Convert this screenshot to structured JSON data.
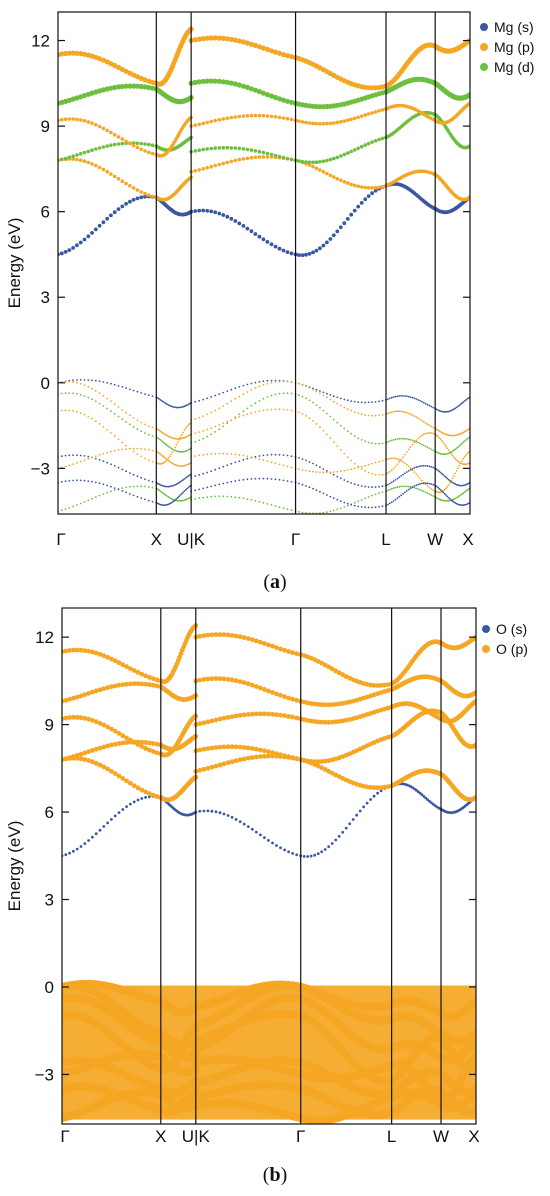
{
  "chart_data": [
    {
      "type": "scatter",
      "panel": "a",
      "caption_open": "(",
      "caption_letter": "a",
      "caption_close": ")",
      "title": "",
      "xlabel": "",
      "ylabel": "Energy (eV)",
      "ylim": [
        -4.6,
        13.0
      ],
      "yticks": [
        -3,
        0,
        3,
        6,
        9,
        12
      ],
      "ytick_labels": [
        "−3",
        "0",
        "3",
        "6",
        "9",
        "12"
      ],
      "kpath_labels": [
        "Γ",
        "X",
        "U|K",
        "Γ",
        "L",
        "W",
        "X"
      ],
      "kpath_positions": [
        0,
        1.0,
        1.354,
        2.416,
        3.336,
        3.836,
        4.19
      ],
      "legend_position": "top-right",
      "grid": false,
      "series": [
        {
          "name": "Mg (s)",
          "color": "#3b56a3"
        },
        {
          "name": "Mg (p)",
          "color": "#f5a623"
        },
        {
          "name": "Mg (d)",
          "color": "#6dbf3e"
        }
      ],
      "key_points": {
        "conduction_band_minimum_gamma": 4.5,
        "valence_band_maximum": 0.0,
        "valence_band_bottom": -4.5
      }
    },
    {
      "type": "scatter",
      "panel": "b",
      "caption_open": "(",
      "caption_letter": "b",
      "caption_close": ")",
      "title": "",
      "xlabel": "",
      "ylabel": "Energy (eV)",
      "ylim": [
        -4.7,
        13.0
      ],
      "yticks": [
        -3,
        0,
        3,
        6,
        9,
        12
      ],
      "ytick_labels": [
        "−3",
        "0",
        "3",
        "6",
        "9",
        "12"
      ],
      "kpath_labels": [
        "Γ",
        "X",
        "U|K",
        "Γ",
        "L",
        "W",
        "X"
      ],
      "kpath_positions": [
        0,
        1.0,
        1.354,
        2.416,
        3.336,
        3.836,
        4.19
      ],
      "legend_position": "top-right",
      "grid": false,
      "series": [
        {
          "name": "O (s)",
          "color": "#3b56a3"
        },
        {
          "name": "O (p)",
          "color": "#f5a623"
        }
      ],
      "key_points": {
        "conduction_band_minimum_gamma": 4.5,
        "valence_band_maximum": 0.0,
        "valence_band_bottom": -4.6
      }
    }
  ]
}
